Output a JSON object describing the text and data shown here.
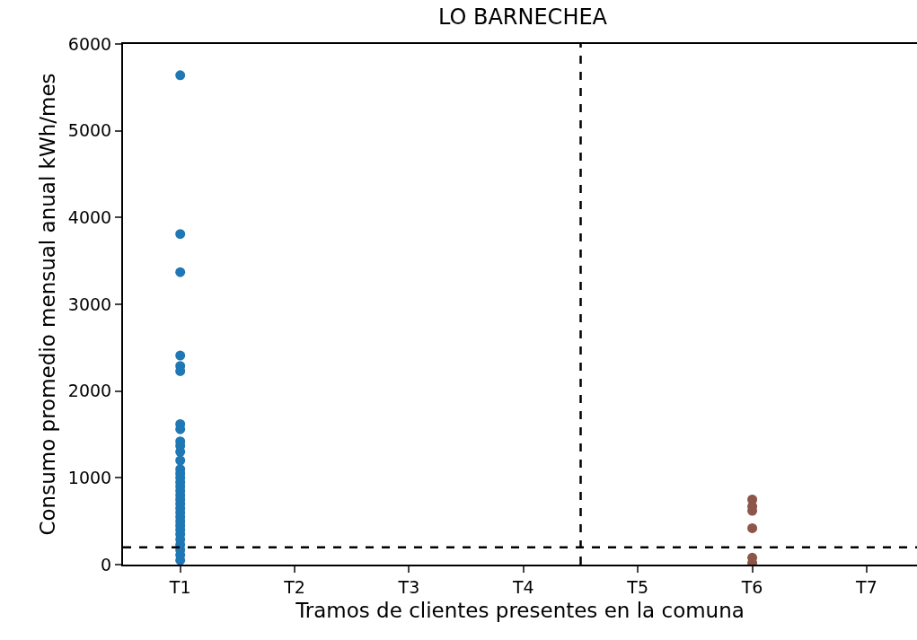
{
  "chart_data": {
    "type": "scatter",
    "title": "LO BARNECHEA",
    "xlabel": "Tramos de clientes presentes en la comuna",
    "ylabel": "Consumo promedio mensual anual kWh/mes",
    "categories": [
      "T1",
      "T2",
      "T3",
      "T4",
      "T5",
      "T6",
      "T7"
    ],
    "series": [
      {
        "color": "#1f77b4",
        "x": [
          "T1",
          "T1",
          "T1",
          "T1",
          "T1",
          "T1",
          "T1",
          "T1",
          "T1",
          "T1",
          "T1",
          "T1",
          "T1",
          "T1",
          "T1",
          "T1",
          "T1",
          "T1",
          "T1",
          "T1",
          "T1",
          "T1",
          "T1",
          "T1",
          "T1",
          "T1",
          "T1",
          "T1",
          "T1",
          "T1",
          "T1",
          "T1",
          "T1"
        ],
        "values": [
          5640,
          3810,
          3370,
          2410,
          2290,
          2230,
          1620,
          1560,
          1420,
          1370,
          1300,
          1200,
          1100,
          1050,
          1000,
          950,
          900,
          850,
          800,
          750,
          700,
          650,
          600,
          550,
          500,
          450,
          400,
          350,
          290,
          230,
          170,
          110,
          50
        ]
      },
      {
        "color": "#8c564b",
        "x": [
          "T6",
          "T6",
          "T6",
          "T6",
          "T6",
          "T6"
        ],
        "values": [
          750,
          670,
          620,
          420,
          80,
          20
        ]
      }
    ],
    "ylim": [
      0,
      6000
    ],
    "yticks": [
      0,
      1000,
      2000,
      3000,
      4000,
      5000,
      6000
    ],
    "ref_lines": [
      {
        "axis": "y",
        "value": 200,
        "color": "#000000",
        "line_style": "dashed"
      }
    ],
    "marker": "circle"
  }
}
